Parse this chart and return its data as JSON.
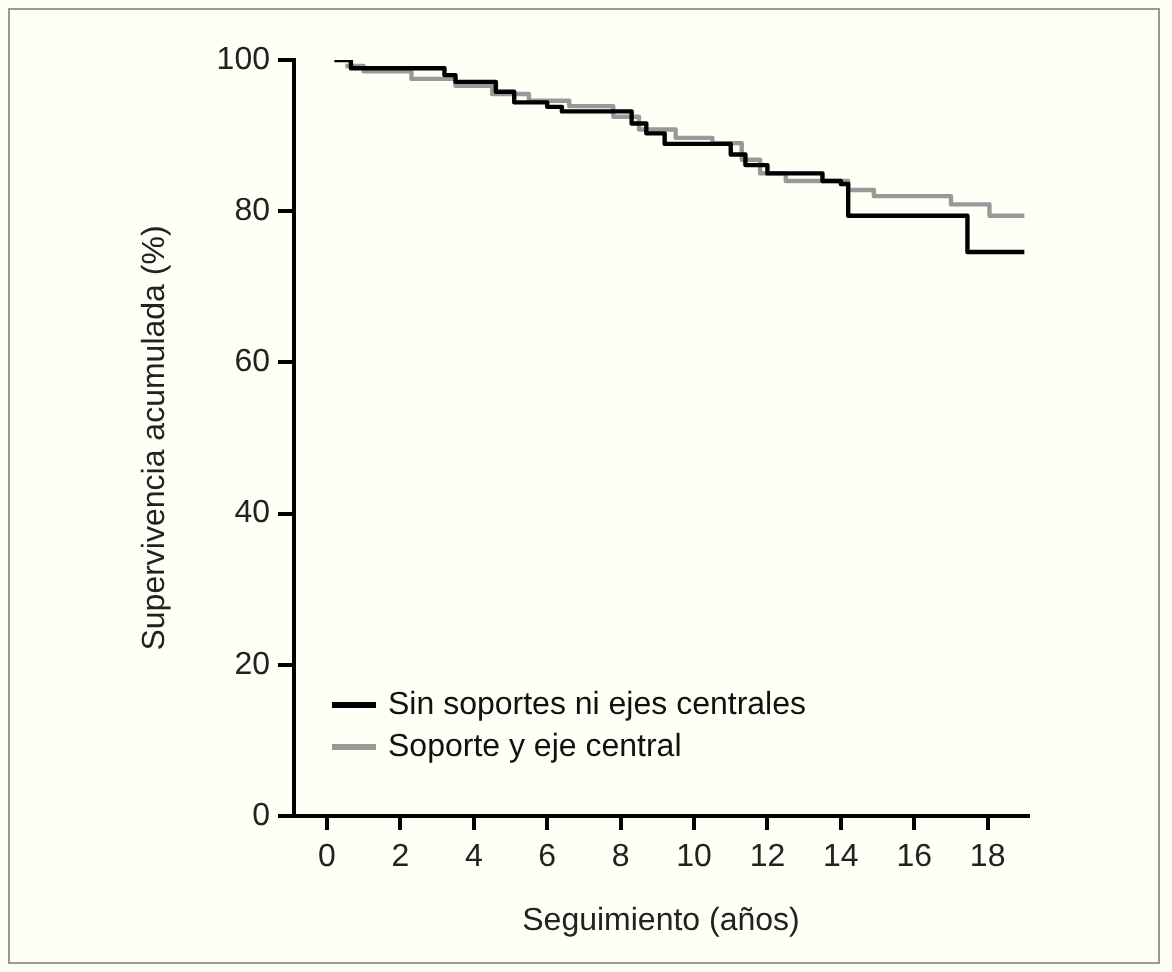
{
  "chart_data": {
    "type": "step",
    "xlabel": "Seguimiento (años)",
    "ylabel": "Supervivencia acumulada (%)",
    "xlim": [
      -0.9,
      19.1
    ],
    "xticks": [
      0,
      2,
      4,
      6,
      8,
      10,
      12,
      14,
      16,
      18
    ],
    "ylim": [
      0,
      100
    ],
    "yticks": [
      0,
      20,
      40,
      60,
      80,
      100
    ],
    "grid": false,
    "legend": "bottom left",
    "marker": "none",
    "line_style": "solid",
    "series": [
      {
        "name": "Sin soportes ni ejes centrales",
        "color": "#000000",
        "x": [
          0.2,
          0.65,
          3.2,
          3.5,
          4.6,
          5.1,
          6.0,
          6.4,
          8.3,
          8.7,
          9.2,
          11.0,
          11.4,
          12.0,
          13.5,
          14.0,
          14.2,
          17.45,
          19.0
        ],
        "values": [
          100,
          98.9,
          98.0,
          97.1,
          95.8,
          94.4,
          93.8,
          93.2,
          91.6,
          90.3,
          88.9,
          87.5,
          86.1,
          85.0,
          84.0,
          83.6,
          79.4,
          74.6,
          74.6
        ]
      },
      {
        "name": "Soporte y eje central",
        "color": "#999999",
        "x": [
          0.5,
          1.0,
          2.3,
          3.5,
          4.5,
          5.5,
          6.6,
          7.8,
          8.5,
          9.5,
          10.5,
          11.3,
          11.8,
          12.5,
          14.2,
          14.9,
          17.0,
          18.05,
          19.0
        ],
        "values": [
          99.2,
          98.5,
          97.5,
          96.6,
          95.5,
          94.6,
          93.9,
          92.5,
          90.8,
          89.7,
          89.0,
          86.8,
          85.0,
          84.0,
          82.8,
          82.0,
          80.9,
          79.4,
          79.4
        ]
      }
    ]
  }
}
